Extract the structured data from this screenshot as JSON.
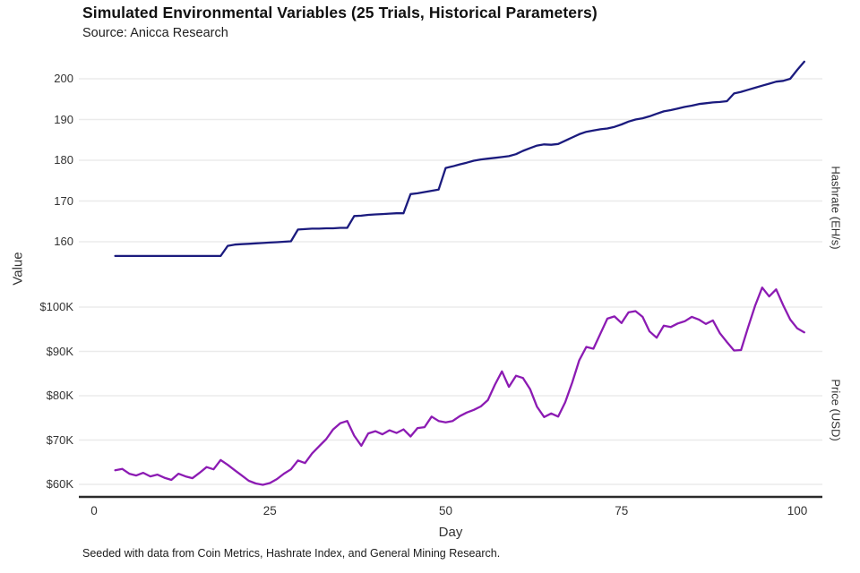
{
  "header": {
    "title": "Simulated Environmental Variables (25 Trials, Historical Parameters)",
    "subtitle": "Source: Anicca Research"
  },
  "axes": {
    "y_label": "Value",
    "x_label": "Day",
    "right_label_top": "Hashrate (EH/s)",
    "right_label_bottom": "Price (USD)"
  },
  "footer": {
    "note": "Seeded with data from Coin Metrics, Hashrate Index, and General Mining Research."
  },
  "colors": {
    "hashrate_line": "#1b1b7e",
    "price_line": "#8c1bb3",
    "grid": "#ebebeb",
    "axis": "#2b2b2b",
    "text": "#333333"
  },
  "chart_data": {
    "type": "line",
    "title": "Simulated Environmental Variables (25 Trials, Historical Parameters)",
    "subtitle": "Source: Anicca Research",
    "xlabel": "Day",
    "ylabel": "Value",
    "grid": true,
    "legend": false,
    "x_ticks": [
      0,
      25,
      50,
      75,
      100
    ],
    "xlim": [
      -2.2,
      103.5
    ],
    "days": [
      3,
      4,
      5,
      6,
      7,
      8,
      9,
      10,
      11,
      12,
      13,
      14,
      15,
      16,
      17,
      18,
      19,
      20,
      21,
      22,
      23,
      24,
      25,
      26,
      27,
      28,
      29,
      30,
      31,
      32,
      33,
      34,
      35,
      36,
      37,
      38,
      39,
      40,
      41,
      42,
      43,
      44,
      45,
      46,
      47,
      48,
      49,
      50,
      51,
      52,
      53,
      54,
      55,
      56,
      57,
      58,
      59,
      60,
      61,
      62,
      63,
      64,
      65,
      66,
      67,
      68,
      69,
      70,
      71,
      72,
      73,
      74,
      75,
      76,
      77,
      78,
      79,
      80,
      81,
      82,
      83,
      84,
      85,
      86,
      87,
      88,
      89,
      90,
      91,
      92,
      93,
      94,
      95,
      96,
      97,
      98,
      99,
      100,
      101
    ],
    "series": [
      {
        "name": "Hashrate (EH/s)",
        "axis": "hashrate",
        "color": "#1b1b7e",
        "y_ticks": [
          200,
          190,
          180,
          170,
          160
        ],
        "y_tick_labels": [
          "200",
          "190",
          "180",
          "170",
          "160"
        ],
        "ylim_panel": [
          155,
          205
        ],
        "values": [
          156.5,
          156.5,
          156.5,
          156.5,
          156.5,
          156.5,
          156.5,
          156.5,
          156.5,
          156.5,
          156.5,
          156.5,
          156.5,
          156.5,
          156.5,
          156.5,
          159.0,
          159.3,
          159.4,
          159.5,
          159.6,
          159.7,
          159.8,
          159.9,
          160.0,
          160.1,
          163.0,
          163.1,
          163.2,
          163.2,
          163.3,
          163.3,
          163.4,
          163.4,
          166.3,
          166.4,
          166.6,
          166.7,
          166.8,
          166.9,
          167.0,
          167.0,
          171.7,
          171.9,
          172.2,
          172.5,
          172.8,
          178.1,
          178.5,
          179.0,
          179.4,
          179.9,
          180.2,
          180.4,
          180.6,
          180.8,
          181.0,
          181.5,
          182.3,
          183.0,
          183.6,
          183.9,
          183.8,
          184.0,
          184.8,
          185.6,
          186.4,
          187.0,
          187.3,
          187.6,
          187.8,
          188.2,
          188.8,
          189.5,
          190.0,
          190.3,
          190.8,
          191.4,
          192.0,
          192.3,
          192.7,
          193.1,
          193.4,
          193.8,
          194.0,
          194.2,
          194.3,
          194.5,
          196.4,
          196.8,
          197.3,
          197.8,
          198.3,
          198.8,
          199.3,
          199.5,
          200.0,
          202.2,
          204.2
        ]
      },
      {
        "name": "Price (USD)",
        "axis": "price",
        "color": "#8c1bb3",
        "y_ticks": [
          100,
          90,
          80,
          70,
          60
        ],
        "y_tick_labels": [
          "$100K",
          "$90K",
          "$80K",
          "$70K",
          "$60K"
        ],
        "units": "thousand USD",
        "ylim_panel": [
          58,
          106
        ],
        "values": [
          63.2,
          63.5,
          62.4,
          62.0,
          62.6,
          61.8,
          62.2,
          61.5,
          61.0,
          62.4,
          61.8,
          61.4,
          62.6,
          63.9,
          63.4,
          65.5,
          64.4,
          63.2,
          62.0,
          60.8,
          60.2,
          59.9,
          60.3,
          61.2,
          62.4,
          63.4,
          65.4,
          64.8,
          67.0,
          68.6,
          70.2,
          72.4,
          73.8,
          74.3,
          71.0,
          68.7,
          71.5,
          72.0,
          71.3,
          72.2,
          71.6,
          72.4,
          70.8,
          72.7,
          72.9,
          75.3,
          74.3,
          74.0,
          74.3,
          75.4,
          76.2,
          76.8,
          77.6,
          79.0,
          82.5,
          85.5,
          82.0,
          84.5,
          84.0,
          81.5,
          77.5,
          75.2,
          76.0,
          75.3,
          78.5,
          83.0,
          88.0,
          91.0,
          90.6,
          94.0,
          97.4,
          97.9,
          96.4,
          98.8,
          99.1,
          97.8,
          94.5,
          93.1,
          95.8,
          95.5,
          96.3,
          96.8,
          97.8,
          97.2,
          96.2,
          97.0,
          94.1,
          92.1,
          90.2,
          90.3,
          95.4,
          100.3,
          104.4,
          102.4,
          104.0,
          100.4,
          97.2,
          95.2,
          94.3
        ]
      }
    ]
  }
}
